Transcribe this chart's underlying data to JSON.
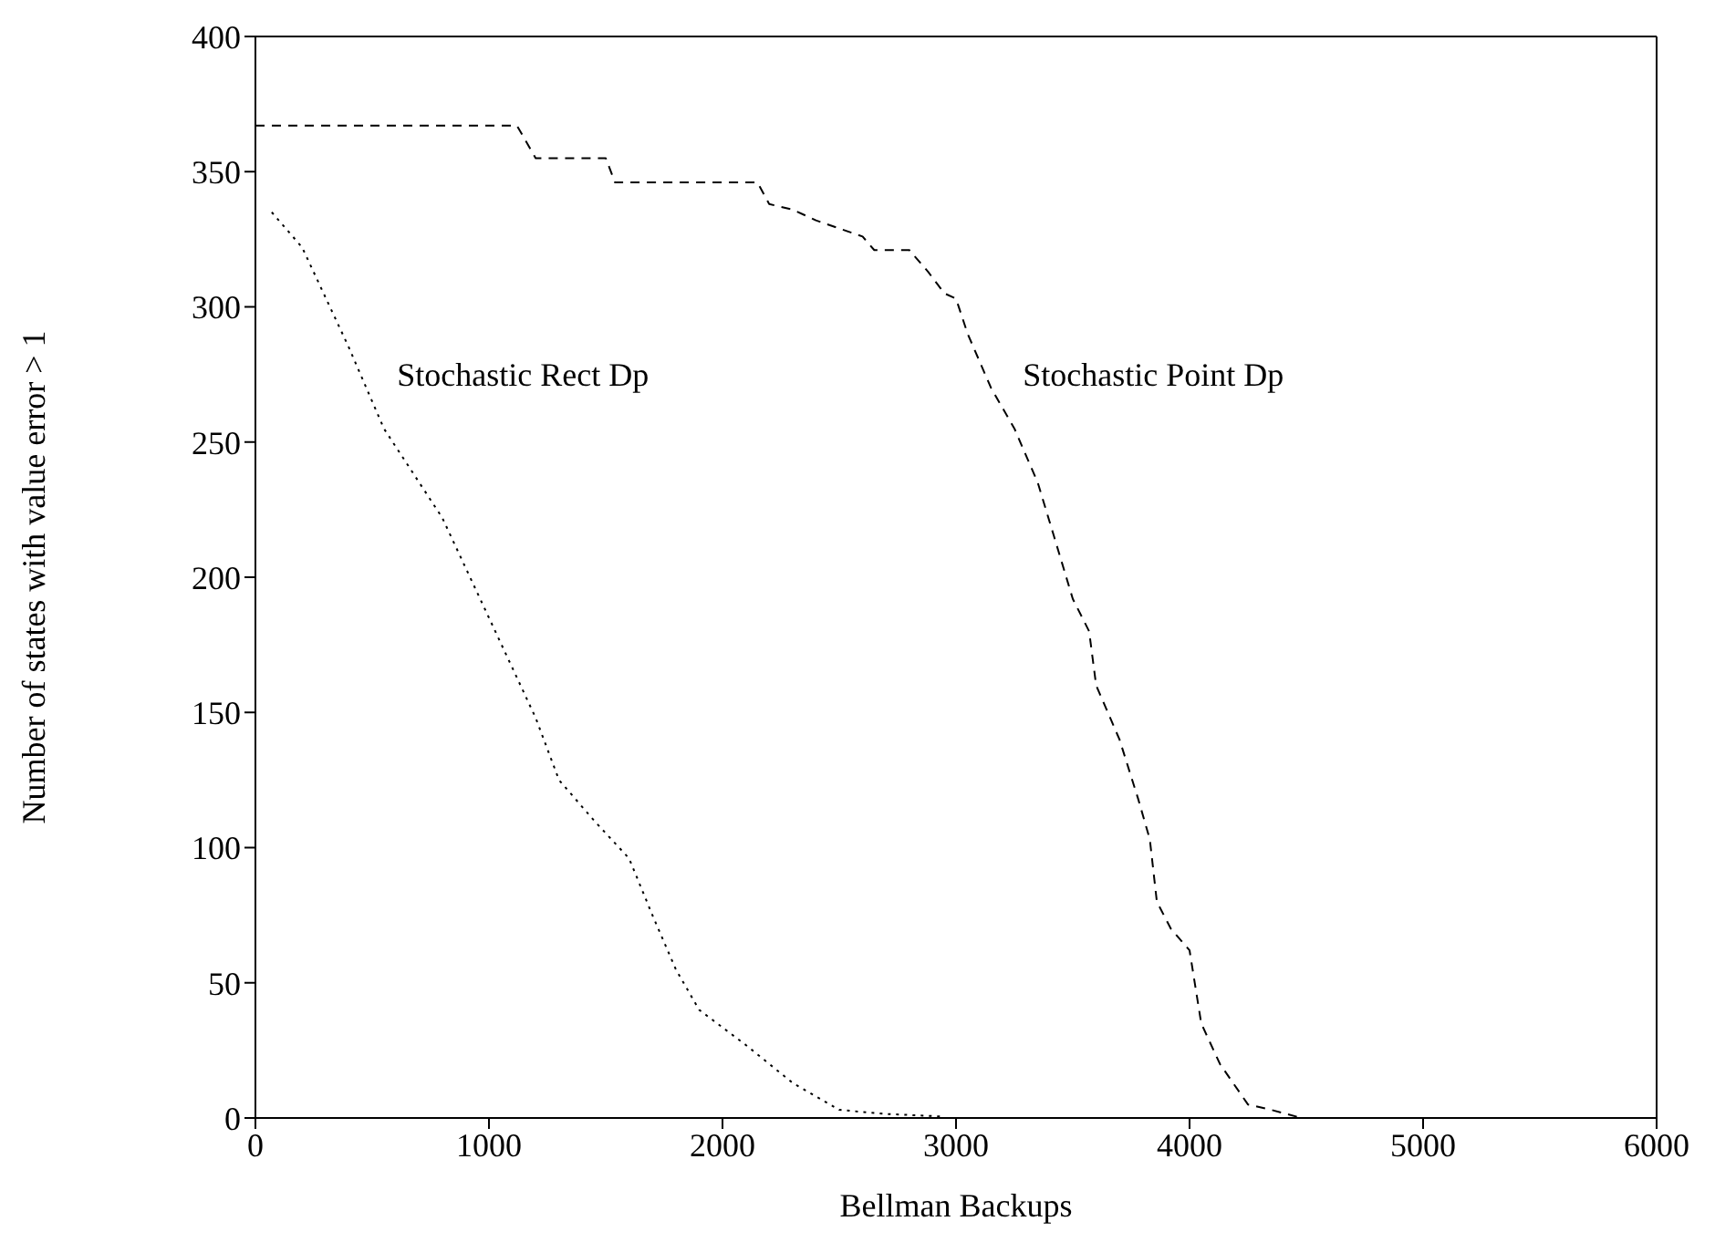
{
  "chart_data": {
    "type": "line",
    "xlabel": "Bellman Backups",
    "ylabel": "Number of states with value error > 1",
    "xlim": [
      0,
      6000
    ],
    "xticks": [
      0,
      1000,
      2000,
      3000,
      4000,
      5000,
      6000
    ],
    "ylim": [
      0,
      400
    ],
    "yticks": [
      0,
      50,
      100,
      150,
      200,
      250,
      300,
      350,
      400
    ],
    "grid": false,
    "marker": "none",
    "series": [
      {
        "color": "#000000",
        "line_style": "dotted",
        "x": [
          70,
          200,
          400,
          550,
          800,
          1000,
          1200,
          1300,
          1450,
          1600,
          1700,
          1800,
          1900,
          2100,
          2300,
          2500,
          2700,
          2950
        ],
        "values": [
          335,
          322,
          285,
          255,
          222,
          185,
          148,
          125,
          110,
          96,
          75,
          55,
          40,
          27,
          13,
          3,
          1.5,
          0.5
        ]
      },
      {
        "color": "#000000",
        "line_style": "dashed",
        "x": [
          0,
          1120,
          1200,
          1500,
          1540,
          2150,
          2200,
          2300,
          2400,
          2600,
          2650,
          2800,
          2880,
          2950,
          3000,
          3050,
          3150,
          3250,
          3350,
          3420,
          3500,
          3570,
          3600,
          3700,
          3780,
          3830,
          3860,
          3920,
          4000,
          4050,
          4130,
          4250,
          4350,
          4480
        ],
        "values": [
          367,
          367,
          355,
          355,
          346,
          346,
          338,
          336,
          332,
          326,
          321,
          321,
          313,
          305,
          303,
          290,
          270,
          255,
          235,
          215,
          192,
          180,
          160,
          140,
          118,
          103,
          80,
          70,
          62,
          35,
          20,
          5,
          3,
          0
        ]
      }
    ],
    "annotations": [
      {
        "text": "Stochastic Rect Dp",
        "x": 450,
        "y": 275
      },
      {
        "text": "Stochastic Point Dp",
        "x": 3130,
        "y": 275
      }
    ]
  }
}
